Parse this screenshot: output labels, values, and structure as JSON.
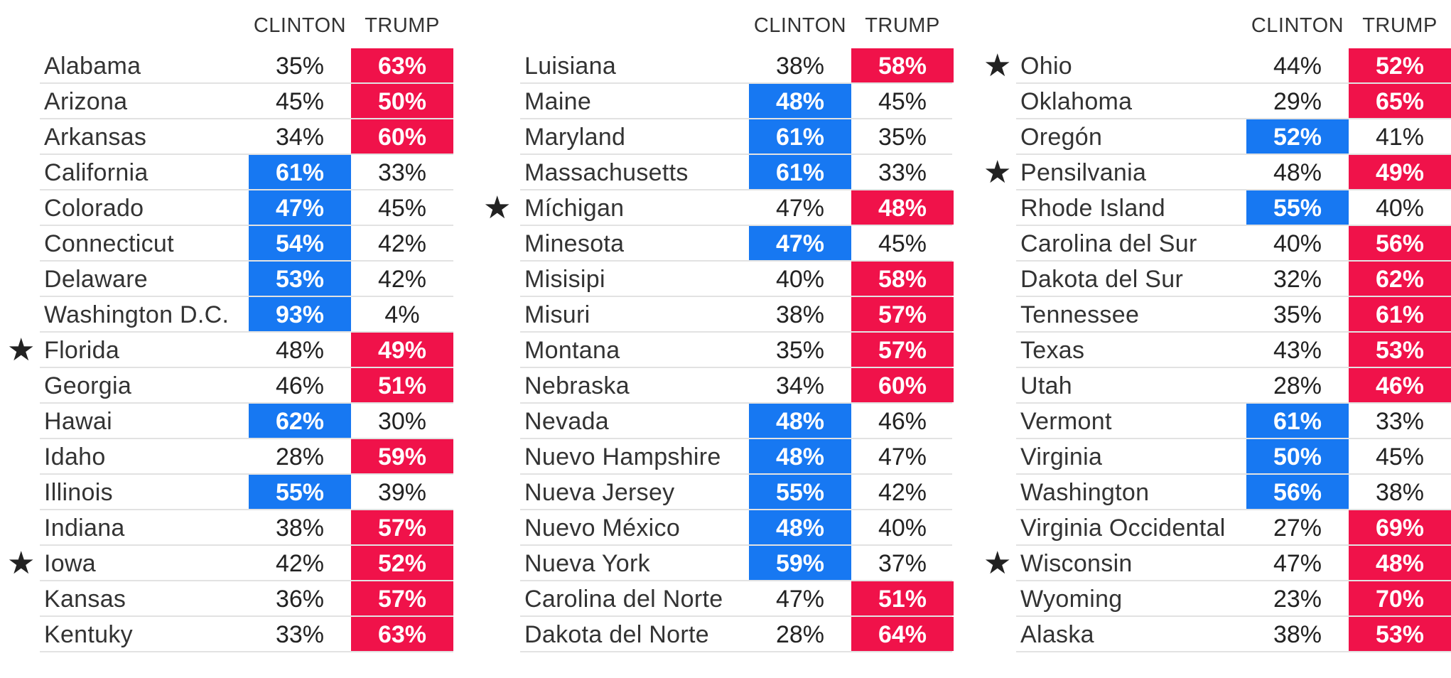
{
  "headers": {
    "clinton": "CLINTON",
    "trump": "TRUMP"
  },
  "colors": {
    "clinton": "#1778f2",
    "trump": "#f0124a"
  },
  "chart_data": {
    "type": "table",
    "columns": [
      "CLINTON",
      "TRUMP"
    ],
    "panels": [
      [
        {
          "state": "Alabama",
          "clinton": "35%",
          "trump": "63%",
          "star": false
        },
        {
          "state": "Arizona",
          "clinton": "45%",
          "trump": "50%",
          "star": false
        },
        {
          "state": "Arkansas",
          "clinton": "34%",
          "trump": "60%",
          "star": false
        },
        {
          "state": "California",
          "clinton": "61%",
          "trump": "33%",
          "star": false
        },
        {
          "state": "Colorado",
          "clinton": "47%",
          "trump": "45%",
          "star": false
        },
        {
          "state": "Connecticut",
          "clinton": "54%",
          "trump": "42%",
          "star": false
        },
        {
          "state": "Delaware",
          "clinton": "53%",
          "trump": "42%",
          "star": false
        },
        {
          "state": "Washington D.C.",
          "clinton": "93%",
          "trump": "4%",
          "star": false
        },
        {
          "state": "Florida",
          "clinton": "48%",
          "trump": "49%",
          "star": true
        },
        {
          "state": "Georgia",
          "clinton": "46%",
          "trump": "51%",
          "star": false
        },
        {
          "state": "Hawai",
          "clinton": "62%",
          "trump": "30%",
          "star": false
        },
        {
          "state": "Idaho",
          "clinton": "28%",
          "trump": "59%",
          "star": false
        },
        {
          "state": "Illinois",
          "clinton": "55%",
          "trump": "39%",
          "star": false
        },
        {
          "state": "Indiana",
          "clinton": "38%",
          "trump": "57%",
          "star": false
        },
        {
          "state": "Iowa",
          "clinton": "42%",
          "trump": "52%",
          "star": true
        },
        {
          "state": "Kansas",
          "clinton": "36%",
          "trump": "57%",
          "star": false
        },
        {
          "state": "Kentuky",
          "clinton": "33%",
          "trump": "63%",
          "star": false
        }
      ],
      [
        {
          "state": "Luisiana",
          "clinton": "38%",
          "trump": "58%",
          "star": false
        },
        {
          "state": "Maine",
          "clinton": "48%",
          "trump": "45%",
          "star": false
        },
        {
          "state": "Maryland",
          "clinton": "61%",
          "trump": "35%",
          "star": false
        },
        {
          "state": "Massachusetts",
          "clinton": "61%",
          "trump": "33%",
          "star": false
        },
        {
          "state": "Míchigan",
          "clinton": "47%",
          "trump": "48%",
          "star": true
        },
        {
          "state": "Minesota",
          "clinton": "47%",
          "trump": "45%",
          "star": false
        },
        {
          "state": "Misisipi",
          "clinton": "40%",
          "trump": "58%",
          "star": false
        },
        {
          "state": "Misuri",
          "clinton": "38%",
          "trump": "57%",
          "star": false
        },
        {
          "state": "Montana",
          "clinton": "35%",
          "trump": "57%",
          "star": false
        },
        {
          "state": "Nebraska",
          "clinton": "34%",
          "trump": "60%",
          "star": false
        },
        {
          "state": "Nevada",
          "clinton": "48%",
          "trump": "46%",
          "star": false
        },
        {
          "state": "Nuevo Hampshire",
          "clinton": "48%",
          "trump": "47%",
          "star": false
        },
        {
          "state": "Nueva Jersey",
          "clinton": "55%",
          "trump": "42%",
          "star": false
        },
        {
          "state": "Nuevo México",
          "clinton": "48%",
          "trump": "40%",
          "star": false
        },
        {
          "state": "Nueva York",
          "clinton": "59%",
          "trump": "37%",
          "star": false
        },
        {
          "state": "Carolina del Norte",
          "clinton": "47%",
          "trump": "51%",
          "star": false
        },
        {
          "state": "Dakota del Norte",
          "clinton": "28%",
          "trump": "64%",
          "star": false
        }
      ],
      [
        {
          "state": "Ohio",
          "clinton": "44%",
          "trump": "52%",
          "star": true
        },
        {
          "state": "Oklahoma",
          "clinton": "29%",
          "trump": "65%",
          "star": false
        },
        {
          "state": "Oregón",
          "clinton": "52%",
          "trump": "41%",
          "star": false
        },
        {
          "state": "Pensilvania",
          "clinton": "48%",
          "trump": "49%",
          "star": true
        },
        {
          "state": "Rhode Island",
          "clinton": "55%",
          "trump": "40%",
          "star": false
        },
        {
          "state": "Carolina del Sur",
          "clinton": "40%",
          "trump": "56%",
          "star": false
        },
        {
          "state": "Dakota del Sur",
          "clinton": "32%",
          "trump": "62%",
          "star": false
        },
        {
          "state": "Tennessee",
          "clinton": "35%",
          "trump": "61%",
          "star": false
        },
        {
          "state": "Texas",
          "clinton": "43%",
          "trump": "53%",
          "star": false
        },
        {
          "state": "Utah",
          "clinton": "28%",
          "trump": "46%",
          "star": false
        },
        {
          "state": "Vermont",
          "clinton": "61%",
          "trump": "33%",
          "star": false
        },
        {
          "state": "Virginia",
          "clinton": "50%",
          "trump": "45%",
          "star": false
        },
        {
          "state": "Washington",
          "clinton": "56%",
          "trump": "38%",
          "star": false
        },
        {
          "state": "Virginia Occidental",
          "clinton": "27%",
          "trump": "69%",
          "star": false
        },
        {
          "state": "Wisconsin",
          "clinton": "47%",
          "trump": "48%",
          "star": true
        },
        {
          "state": "Wyoming",
          "clinton": "23%",
          "trump": "70%",
          "star": false
        },
        {
          "state": "Alaska",
          "clinton": "38%",
          "trump": "53%",
          "star": false
        }
      ]
    ]
  }
}
